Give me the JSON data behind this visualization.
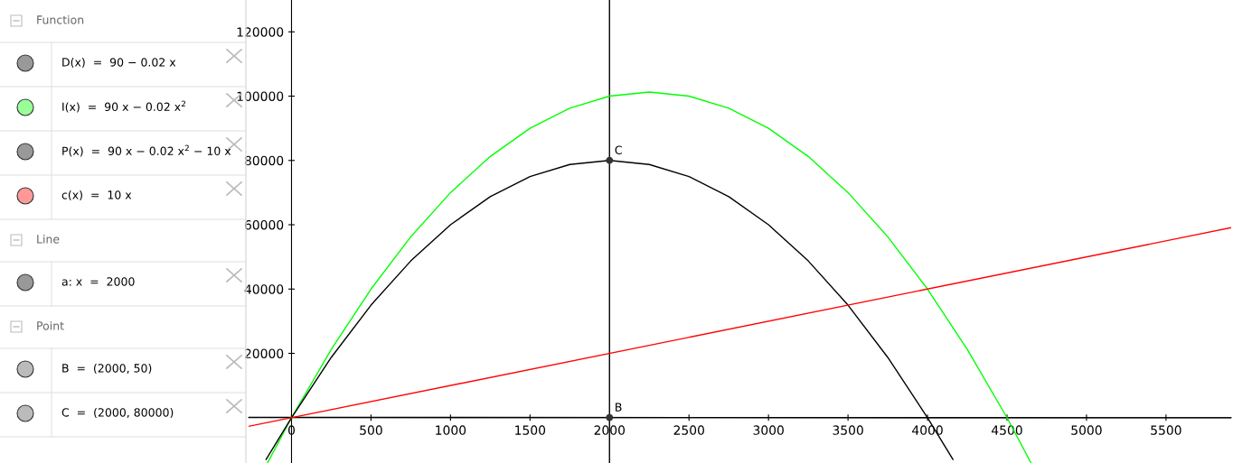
{
  "chart_data": {
    "type": "line",
    "xlim": [
      -270,
      5910
    ],
    "ylim": [
      -14100,
      129900
    ],
    "xticks": [
      0,
      500,
      1000,
      1500,
      2000,
      2500,
      3000,
      3500,
      4000,
      4500,
      5000,
      5500
    ],
    "yticks": [
      20000,
      40000,
      60000,
      80000,
      100000,
      120000
    ],
    "grid": false,
    "legend": false,
    "series": [
      {
        "color": "#000000",
        "x": [
          -270,
          5910
        ],
        "values": [
          95,
          -28
        ]
      },
      {
        "color": "#00ff00",
        "x": [
          -150,
          0,
          250,
          500,
          750,
          1000,
          1250,
          1500,
          1750,
          2000,
          2250,
          2500,
          2750,
          3000,
          3250,
          3500,
          3750,
          4000,
          4250,
          4500,
          4650
        ],
        "values": [
          -14000,
          0,
          21250,
          40000,
          56250,
          70000,
          81250,
          90000,
          96250,
          100000,
          101250,
          100000,
          96250,
          90000,
          81250,
          70000,
          56250,
          40000,
          21250,
          0,
          -14000
        ]
      },
      {
        "color": "#000000",
        "x": [
          -160,
          0,
          250,
          500,
          750,
          1000,
          1250,
          1500,
          1750,
          2000,
          2250,
          2500,
          2750,
          3000,
          3250,
          3500,
          3750,
          4000,
          4160
        ],
        "values": [
          -13000,
          0,
          18750,
          35000,
          48750,
          60000,
          68750,
          75000,
          78750,
          80000,
          78750,
          75000,
          68750,
          60000,
          48750,
          35000,
          18750,
          0,
          -13000
        ]
      },
      {
        "color": "#ff0000",
        "x": [
          -270,
          5910
        ],
        "values": [
          -2700,
          59100
        ]
      },
      {
        "type": "scatter",
        "marker": "circle",
        "color": "#333333",
        "x": [
          2000,
          2000
        ],
        "values": [
          50,
          80000
        ]
      }
    ],
    "ref_lines": [
      {
        "axis": "x",
        "value": 2000,
        "color": "#000000"
      }
    ],
    "annotations": [
      {
        "text": "B",
        "x": 2000,
        "y": 50
      },
      {
        "text": "C",
        "x": 2000,
        "y": 80000
      },
      "Function",
      "D(x)  =  90 − 0.02 x",
      "I(x)  =  90 x − 0.02 x$^{2}$",
      "P(x)  =  90 x − 0.02 x$^{2}$ − 10 x",
      "c(x)  =  10 x",
      "Line",
      "a: x  =  2000",
      "Point",
      "B  =  (2000, 50)",
      "C  =  (2000, 80000)"
    ]
  }
}
